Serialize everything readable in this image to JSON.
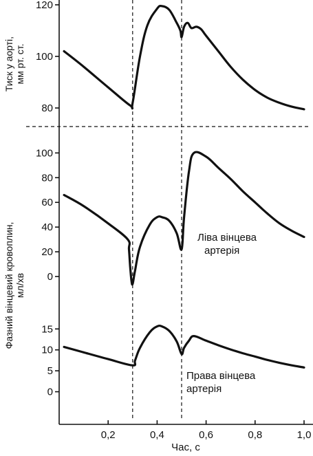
{
  "chart_data": {
    "type": "line",
    "x_label": "Час, с",
    "x_ticks": [
      "0,2",
      "0,4",
      "0,6",
      "0,8",
      "1,0"
    ],
    "x_tick_values": [
      0.2,
      0.4,
      0.6,
      0.8,
      1.0
    ],
    "xlim": [
      0.0,
      1.0
    ],
    "valve_marker_times": [
      0.3,
      0.5
    ],
    "panels": [
      {
        "id": "aortic-pressure",
        "ylabel_lines": [
          "Тиск у аорті,",
          "мм рт. ст."
        ],
        "y_ticks": [
          "80",
          "100",
          "120"
        ],
        "y_tick_values": [
          80,
          100,
          120
        ],
        "ylim": [
          76,
          120
        ],
        "series": [
          {
            "x": [
              0.02,
              0.1,
              0.2,
              0.29,
              0.3,
              0.33,
              0.36,
              0.4,
              0.42,
              0.45,
              0.48,
              0.495,
              0.5,
              0.51,
              0.525,
              0.54,
              0.56,
              0.58,
              0.6,
              0.65,
              0.7,
              0.75,
              0.8,
              0.85,
              0.9,
              0.95,
              1.0
            ],
            "y": [
              102,
              96,
              88,
              81,
              82,
              100,
              112,
              118.5,
              119.5,
              118,
              113,
              110,
              107.5,
              111.5,
              113,
              111,
              111.5,
              110.5,
              108,
              102,
              96,
              91,
              87,
              84,
              82,
              80.5,
              79.5
            ]
          }
        ]
      },
      {
        "id": "left-coronary",
        "ylabel_lines": [
          "Фазний вінцевий кровоплин,",
          "мл/хв"
        ],
        "y_ticks": [
          "0",
          "20",
          "40",
          "60",
          "80",
          "100"
        ],
        "y_tick_values": [
          0,
          20,
          40,
          60,
          80,
          100
        ],
        "ylim": [
          -10,
          108
        ],
        "annotation_lines": [
          "Ліва вінцева",
          "артерія"
        ],
        "series": [
          {
            "x": [
              0.02,
              0.1,
              0.2,
              0.28,
              0.285,
              0.29,
              0.295,
              0.3,
              0.31,
              0.33,
              0.37,
              0.4,
              0.42,
              0.45,
              0.48,
              0.5,
              0.51,
              0.53,
              0.55,
              0.6,
              0.65,
              0.7,
              0.75,
              0.8,
              0.85,
              0.9,
              0.95,
              1.0
            ],
            "y": [
              66,
              57,
              43,
              30,
              22,
              8,
              -3,
              -6,
              5,
              24,
              42,
              48,
              48,
              45,
              35,
              22,
              48,
              85,
              100,
              97,
              88,
              79,
              69,
              60,
              51,
              43,
              37,
              32
            ]
          }
        ]
      },
      {
        "id": "right-coronary",
        "y_ticks": [
          "0",
          "5",
          "10",
          "15"
        ],
        "y_tick_values": [
          0,
          5,
          10,
          15
        ],
        "ylim": [
          -5,
          18
        ],
        "annotation_lines": [
          "Права вінцева",
          "артерія"
        ],
        "series": [
          {
            "x": [
              0.02,
              0.1,
              0.2,
              0.3,
              0.31,
              0.33,
              0.37,
              0.4,
              0.42,
              0.45,
              0.48,
              0.5,
              0.51,
              0.53,
              0.55,
              0.6,
              0.65,
              0.7,
              0.75,
              0.8,
              0.85,
              0.9,
              0.95,
              1.0
            ],
            "y": [
              10.7,
              9.4,
              7.8,
              6.3,
              7.5,
              10.5,
              14.2,
              15.6,
              15.6,
              14.5,
              12,
              9,
              10.5,
              12.2,
              13.3,
              12.2,
              11.1,
              10.1,
              9.2,
              8.4,
              7.6,
              6.9,
              6.3,
              5.8
            ]
          }
        ]
      }
    ]
  }
}
